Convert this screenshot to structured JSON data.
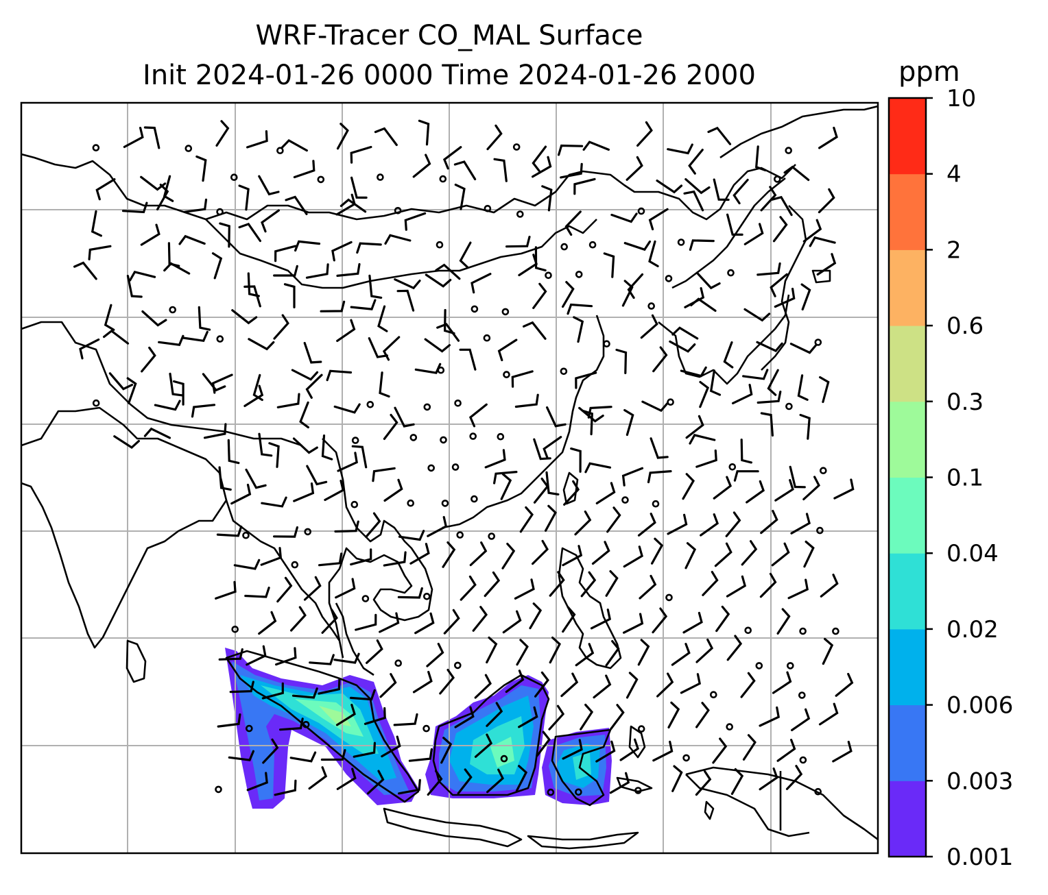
{
  "title_line1": "WRF-Tracer CO_MAL Surface",
  "title_line2": "Init 2024-01-26 0000 Time 2024-01-26 2000",
  "colorbar": {
    "unit": "ppm",
    "levels": [
      "0.001",
      "0.003",
      "0.006",
      "0.02",
      "0.04",
      "0.1",
      "0.3",
      "0.6",
      "2",
      "4",
      "10"
    ],
    "colors": [
      "#6a2af8",
      "#3877f4",
      "#00b1ec",
      "#2fe0d6",
      "#6cfbbd",
      "#9efa9a",
      "#cde185",
      "#fdb262",
      "#ff733b",
      "#ff2b17"
    ]
  },
  "map": {
    "land_outline_color": "#000000",
    "gridline_color": "#b0b0b0",
    "field": "CO_MAL surface tracer concentration",
    "overlay": "wind barbs"
  }
}
